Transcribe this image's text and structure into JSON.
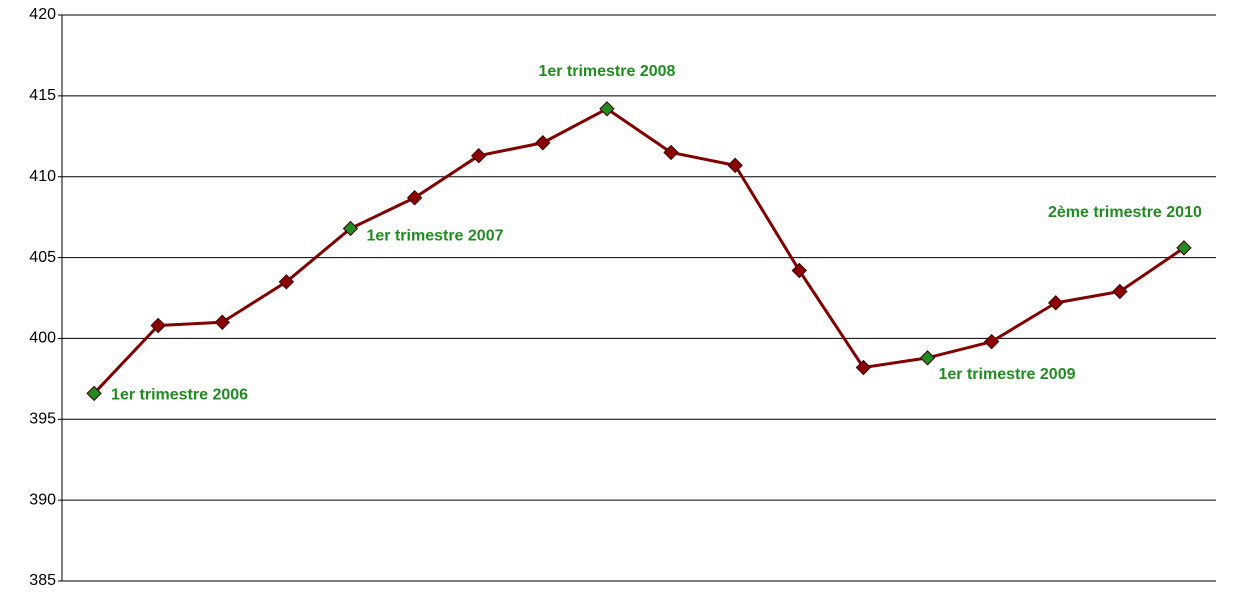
{
  "chart_data": {
    "type": "line",
    "categories": [
      null,
      null,
      null,
      null,
      null,
      null,
      null,
      null,
      null,
      null,
      null,
      null,
      null,
      null,
      null,
      null,
      null,
      null
    ],
    "series": [
      {
        "color": "#800000",
        "marker_color": "#8b0000",
        "values": [
          396.6,
          400.8,
          401.0,
          403.5,
          406.8,
          408.7,
          411.3,
          412.1,
          414.2,
          411.5,
          410.7,
          404.2,
          398.2,
          398.8,
          399.8,
          402.2,
          402.9,
          405.6
        ]
      }
    ],
    "annotations": [
      {
        "text": "1er trimestre 2006",
        "index": 0
      },
      {
        "text": "1er trimestre 2007",
        "index": 4
      },
      {
        "text": "1er trimestre 2008",
        "index": 8
      },
      {
        "text": "1er trimestre 2009",
        "index": 13
      },
      {
        "text": "2ème trimestre 2010",
        "index": 17
      }
    ],
    "annotation_color": "#228b22",
    "ylim": [
      385,
      420
    ],
    "yticks": [
      385,
      390,
      395,
      400,
      405,
      410,
      415,
      420
    ],
    "grid": true
  }
}
